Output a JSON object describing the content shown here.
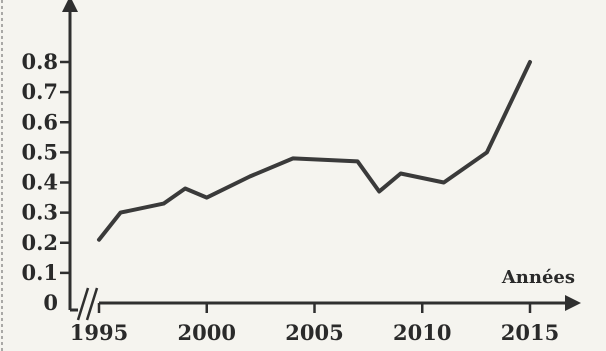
{
  "chart_data": {
    "type": "line",
    "title": "",
    "xlabel": "Années",
    "ylabel": "",
    "x_ticks": [
      1995,
      2000,
      2005,
      2010,
      2015
    ],
    "y_ticks": [
      "0",
      "0.1",
      "0.2",
      "0.3",
      "0.4",
      "0.5",
      "0.6",
      "0.7",
      "0.8"
    ],
    "xlim": [
      1995,
      2015
    ],
    "ylim": [
      0,
      0.8
    ],
    "grid": false,
    "x_axis_break": true,
    "series": [
      {
        "x": [
          1995,
          1996,
          1998,
          1999,
          2000,
          2002,
          2004,
          2007,
          2008,
          2009,
          2011,
          2013,
          2015
        ],
        "values": [
          0.21,
          0.3,
          0.33,
          0.38,
          0.35,
          0.42,
          0.48,
          0.47,
          0.37,
          0.43,
          0.4,
          0.5,
          0.8
        ]
      }
    ]
  }
}
